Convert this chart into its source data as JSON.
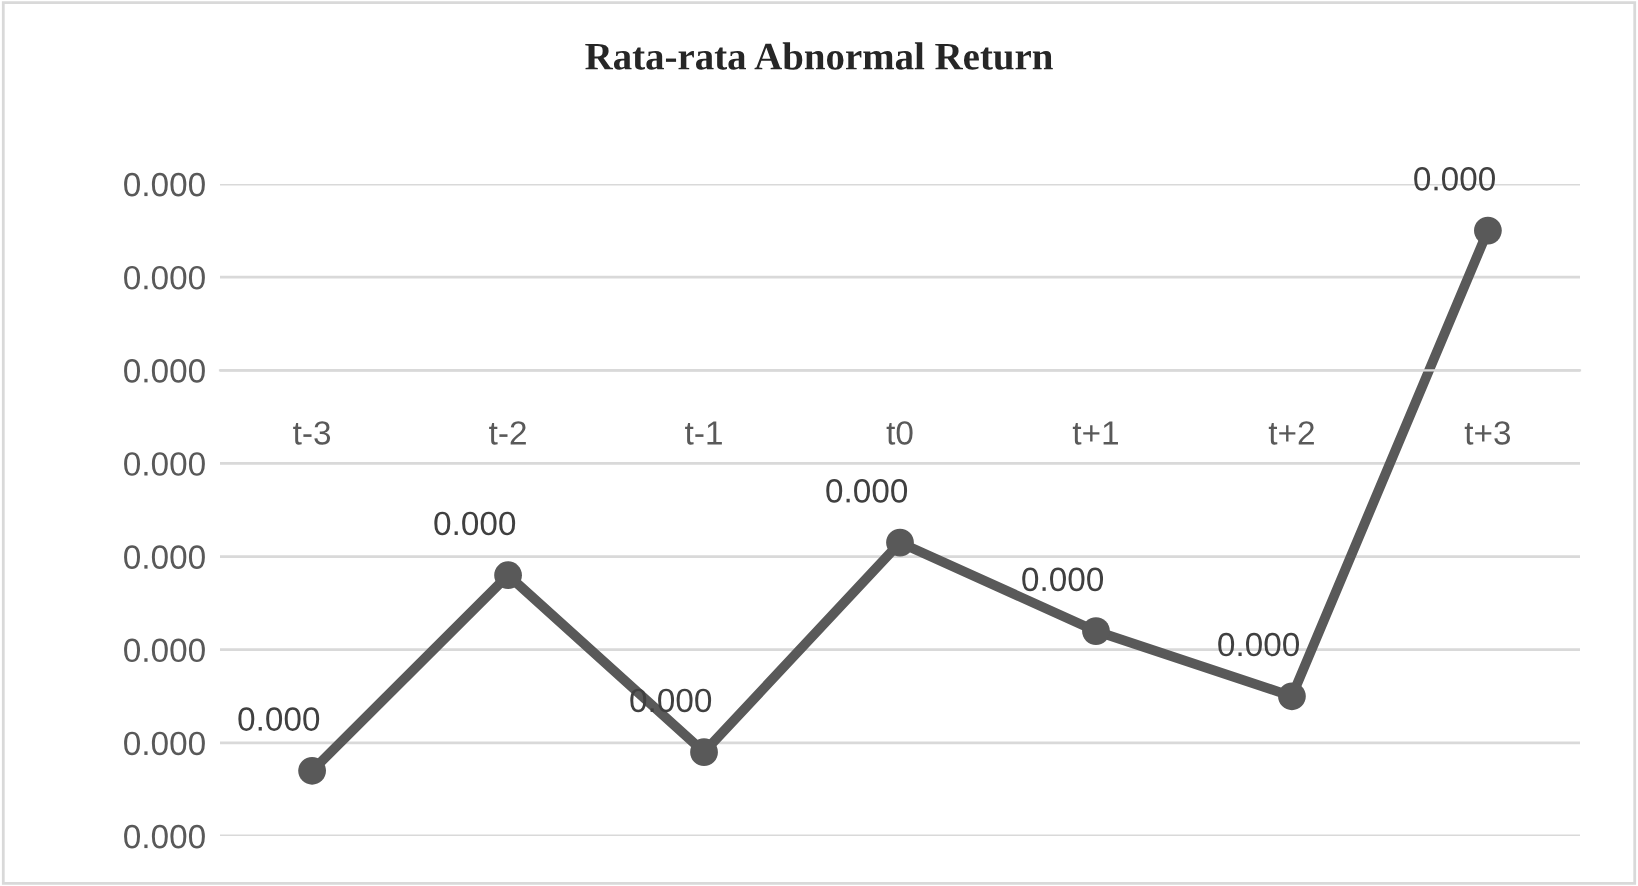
{
  "chart_data": {
    "type": "line",
    "title": "Rata-rata Abnormal Return",
    "categories": [
      "t-3",
      "t-2",
      "t-1",
      "t0",
      "t+1",
      "t+2",
      "t+3"
    ],
    "series": [
      {
        "color": "#595959",
        "values": [
          -0.00043,
          -0.00022,
          -0.00041,
          -0.000185,
          -0.00028,
          -0.00035,
          0.00015
        ],
        "value_labels": [
          "0.000",
          "0.000",
          "0.000",
          "0.000",
          "0.000",
          "0.000",
          "0.000"
        ]
      }
    ],
    "ylim": [
      -0.0005,
      0.0002
    ],
    "yticks": [
      {
        "value": -0.0005,
        "label": "0.000"
      },
      {
        "value": -0.0004,
        "label": "0.000"
      },
      {
        "value": -0.0003,
        "label": "0.000"
      },
      {
        "value": -0.0002,
        "label": "0.000"
      },
      {
        "value": -0.0001,
        "label": "0.000"
      },
      {
        "value": 0,
        "label": "0.000"
      },
      {
        "value": 0.0001,
        "label": "0.000"
      },
      {
        "value": 0.0002,
        "label": "0.000"
      }
    ],
    "grid": "y",
    "marker": "circle",
    "line_style": "solid"
  }
}
